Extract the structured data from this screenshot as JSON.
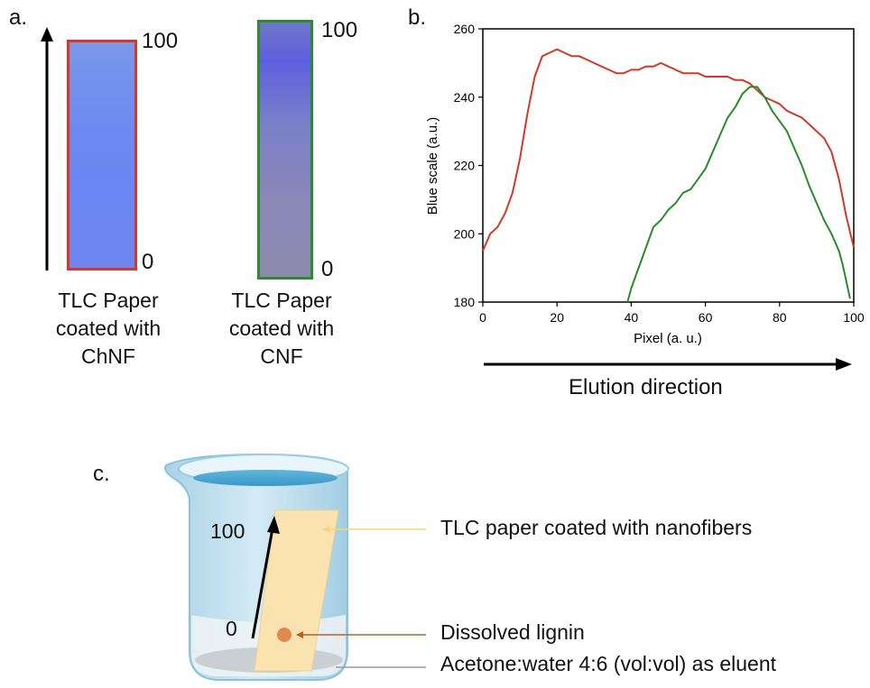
{
  "panel_a": {
    "letter": "a.",
    "strip1": {
      "top_label": "100",
      "bottom_label": "0",
      "caption": [
        "TLC Paper",
        "coated with",
        "ChNF"
      ],
      "border_color": "#d13a26"
    },
    "strip2": {
      "top_label": "100",
      "bottom_label": "0",
      "caption": [
        "TLC Paper",
        "coated with",
        "CNF"
      ],
      "border_color": "#2c8a2c"
    }
  },
  "panel_b": {
    "letter": "b.",
    "direction_label": "Elution direction"
  },
  "panel_c": {
    "letter": "c.",
    "label_top": "100",
    "label_bottom": "0",
    "callout_paper": "TLC paper coated with nanofibers",
    "callout_lignin": "Dissolved lignin",
    "callout_eluent": "Acetone:water 4:6 (vol:vol) as eluent"
  },
  "chart_data": {
    "type": "line",
    "xlabel": "Pixel (a. u.)",
    "ylabel": "Blue scale (a.u.)",
    "xlim": [
      0,
      100
    ],
    "ylim": [
      180,
      260
    ],
    "xticks": [
      "0",
      "20",
      "40",
      "60",
      "80",
      "100"
    ],
    "yticks": [
      "180",
      "200",
      "220",
      "240",
      "260"
    ],
    "grid": false,
    "series": [
      {
        "color": "#d13a26",
        "x": [
          0,
          2,
          4,
          6,
          8,
          10,
          12,
          14,
          16,
          18,
          20,
          22,
          24,
          26,
          28,
          30,
          32,
          34,
          36,
          38,
          40,
          42,
          44,
          46,
          48,
          50,
          52,
          54,
          56,
          58,
          60,
          62,
          64,
          66,
          68,
          70,
          72,
          74,
          76,
          78,
          80,
          82,
          84,
          86,
          88,
          90,
          92,
          94,
          96,
          98,
          100
        ],
        "y": [
          195,
          200,
          202,
          206,
          212,
          222,
          235,
          246,
          252,
          253,
          254,
          253,
          252,
          252,
          251,
          250,
          249,
          248,
          247,
          247,
          248,
          248,
          249,
          249,
          250,
          249,
          248,
          247,
          247,
          247,
          246,
          246,
          246,
          246,
          245,
          245,
          244,
          242,
          240,
          239,
          238,
          236,
          235,
          234,
          232,
          230,
          228,
          224,
          216,
          205,
          196
        ]
      },
      {
        "color": "#2c8a2c",
        "x": [
          39,
          40,
          42,
          44,
          46,
          48,
          50,
          52,
          54,
          56,
          58,
          60,
          62,
          64,
          66,
          68,
          70,
          72,
          74,
          76,
          78,
          80,
          82,
          84,
          86,
          88,
          90,
          92,
          94,
          96,
          97,
          98,
          99
        ],
        "y": [
          180,
          184,
          190,
          196,
          202,
          204,
          207,
          209,
          212,
          213,
          216,
          219,
          224,
          229,
          234,
          237,
          241,
          243,
          243,
          240,
          236,
          233,
          230,
          225,
          220,
          214,
          209,
          204,
          200,
          195,
          191,
          186,
          181
        ]
      }
    ]
  }
}
